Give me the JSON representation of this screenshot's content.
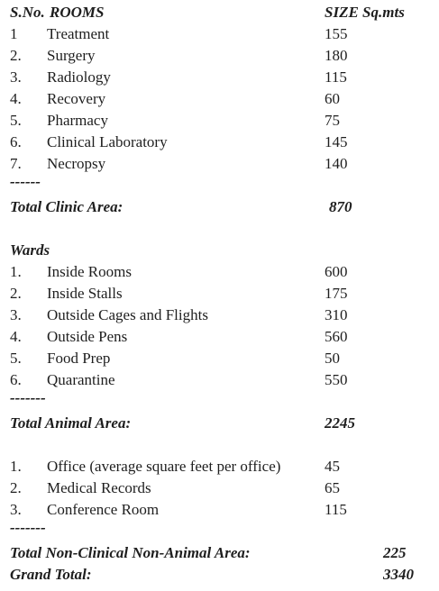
{
  "header": {
    "number": "S.No.",
    "rooms": "ROOMS",
    "size": "SIZE Sq.mts"
  },
  "clinic": {
    "rows": [
      [
        "1",
        "Treatment",
        "155"
      ],
      [
        "2.",
        "Surgery",
        "180"
      ],
      [
        "3.",
        "Radiology",
        "115"
      ],
      [
        "4.",
        "Recovery",
        "60"
      ],
      [
        "5.",
        "Pharmacy",
        "75"
      ],
      [
        "6.",
        "Clinical Laboratory",
        "145"
      ],
      [
        "7.",
        "Necropsy",
        "140"
      ]
    ],
    "separator": "------",
    "total_label": "Total Clinic Area:",
    "total": "870"
  },
  "wards": {
    "title": "Wards",
    "rows": [
      [
        "1.",
        "Inside Rooms",
        "600"
      ],
      [
        "2.",
        "Inside Stalls",
        "175"
      ],
      [
        "3.",
        "Outside Cages and Flights",
        "310"
      ],
      [
        "4.",
        "Outside Pens",
        "560"
      ],
      [
        "5.",
        "Food Prep",
        "50"
      ],
      [
        "6.",
        "Quarantine",
        "550"
      ]
    ],
    "separator": "-------",
    "total_label": "Total Animal Area:",
    "total": "2245"
  },
  "non_clinical": {
    "rows": [
      [
        "1.",
        "Office (average square feet per office)",
        "45"
      ],
      [
        "2.",
        "Medical Records",
        "65"
      ],
      [
        "3.",
        "Conference Room",
        "115"
      ]
    ],
    "separator": "-------",
    "total_label": "Total Non-Clinical Non-Animal Area:",
    "total": "225"
  },
  "grand_total": {
    "label": "Grand Total:",
    "value": "3340"
  }
}
